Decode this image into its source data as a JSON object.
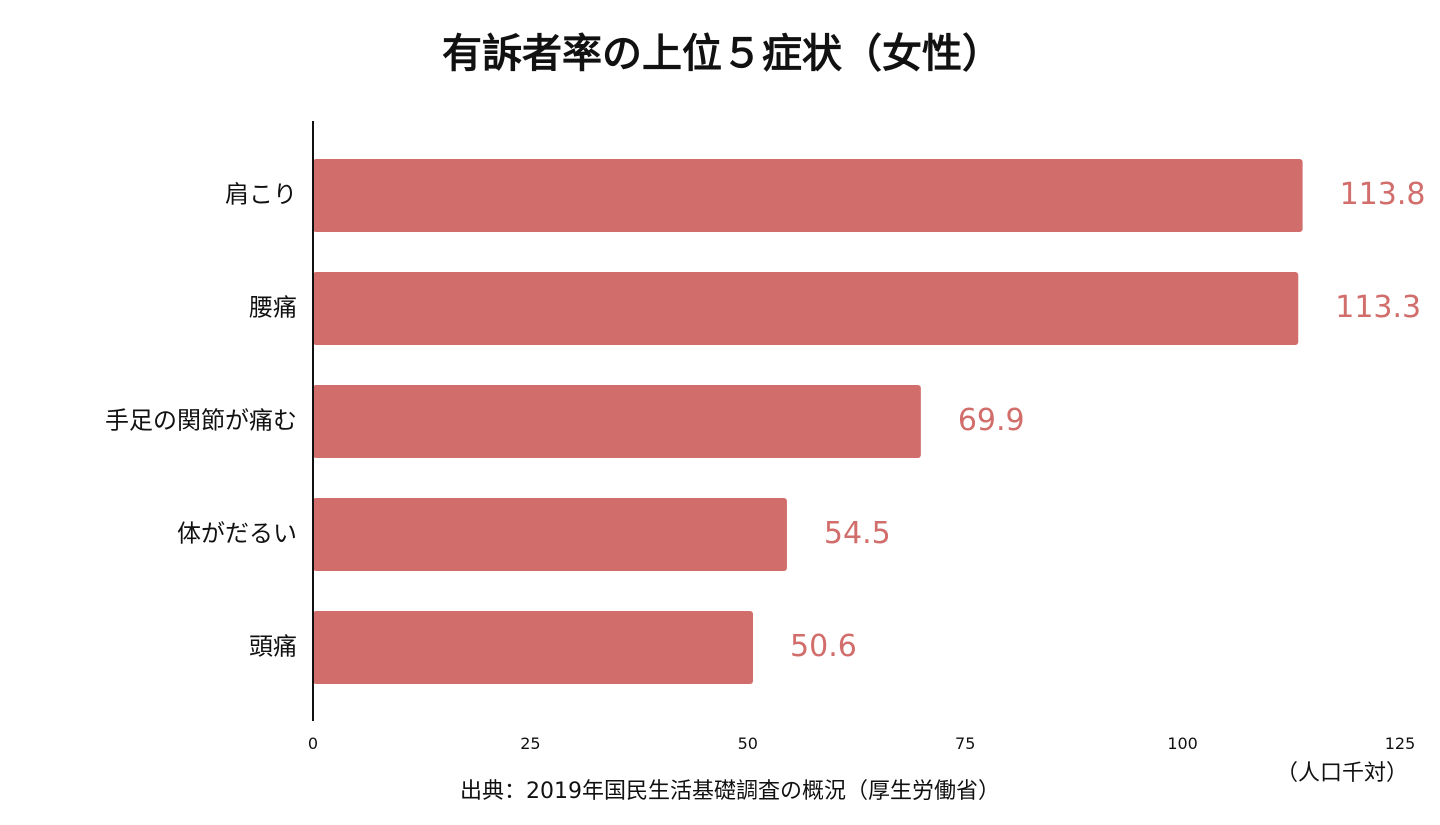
{
  "colors": {
    "bar": "#d16e6b",
    "value_text": "#d16e6b",
    "axis": "#111111"
  },
  "chart_data": {
    "type": "bar",
    "orientation": "horizontal",
    "title": "有訴者率の上位５症状（女性）",
    "categories": [
      "肩こり",
      "腰痛",
      "手足の関節が痛む",
      "体がだるい",
      "頭痛"
    ],
    "values": [
      113.8,
      113.3,
      69.9,
      54.5,
      50.6
    ],
    "value_labels": [
      "113.8",
      "113.3",
      "69.9",
      "54.5",
      "50.6"
    ],
    "xlim": [
      0,
      125
    ],
    "xticks": [
      0,
      25,
      50,
      75,
      100,
      125
    ],
    "xtick_labels": [
      "0",
      "25",
      "50",
      "75",
      "100",
      "125"
    ],
    "unit": "（人口千対）",
    "source": "出典：2019年国民生活基礎調査の概況（厚生労働省）",
    "grid": false,
    "legend": "none"
  }
}
